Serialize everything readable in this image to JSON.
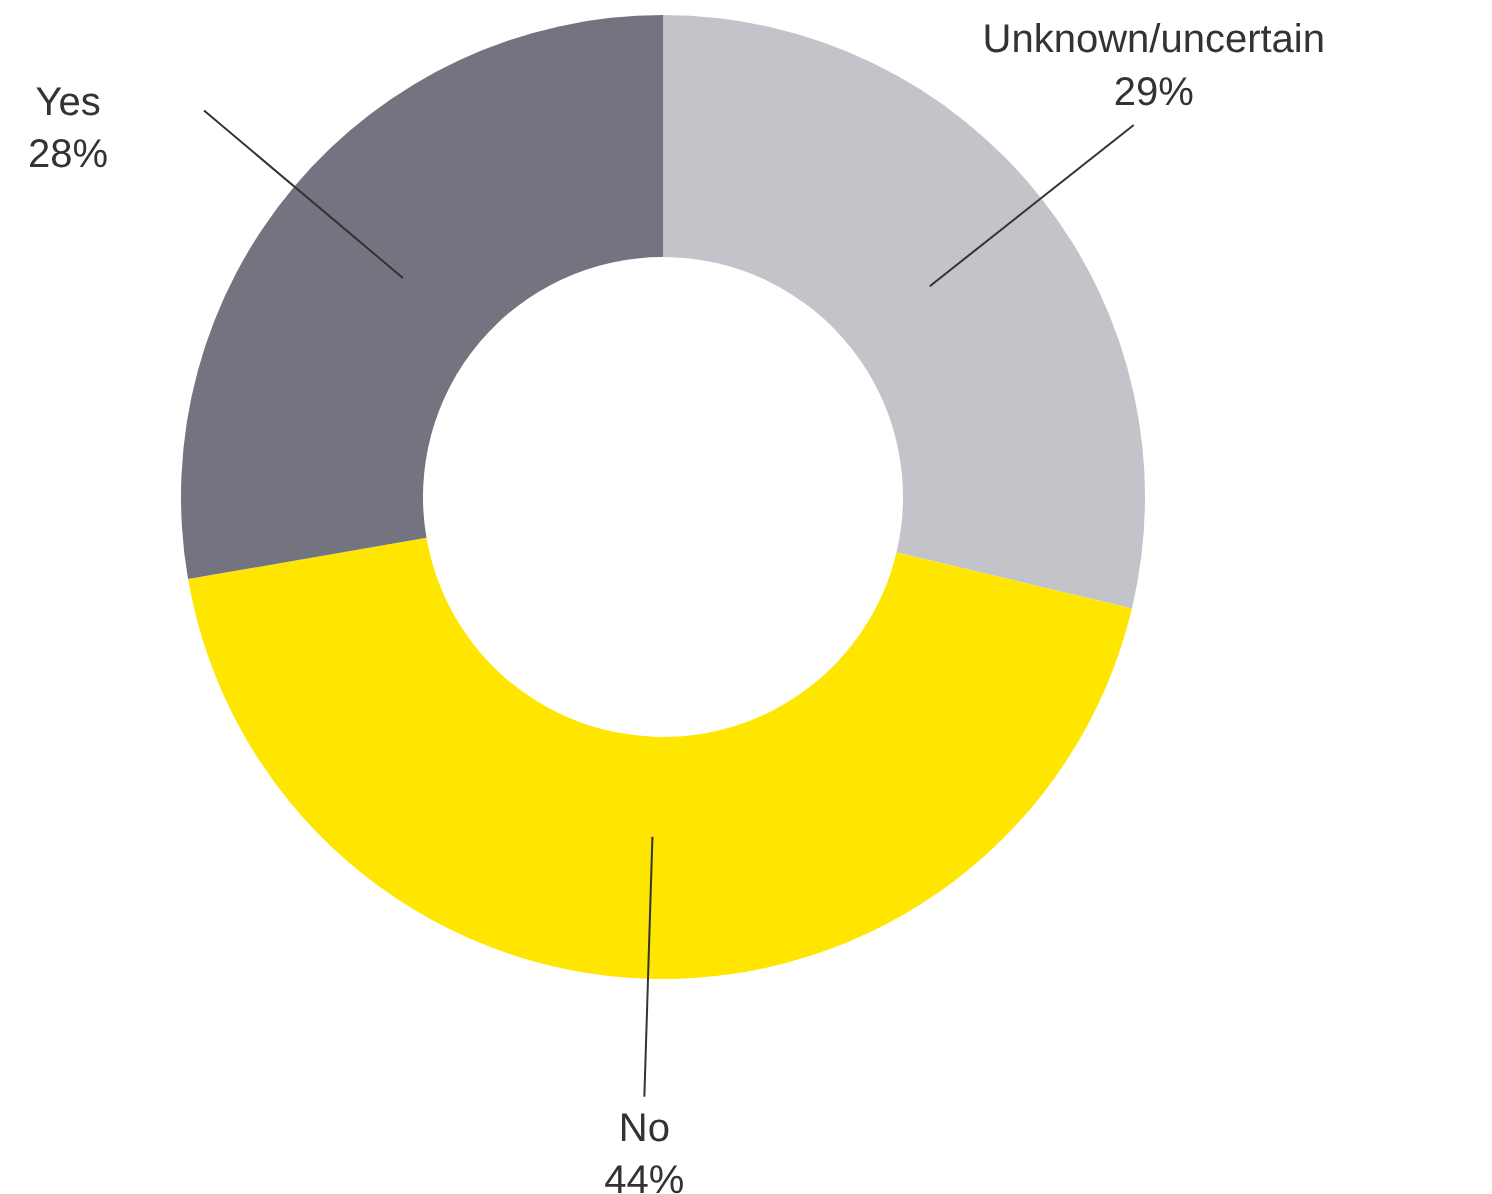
{
  "chart_data": {
    "type": "donut",
    "categories": [
      "Unknown/uncertain",
      "No",
      "Yes"
    ],
    "values": [
      29,
      44,
      28
    ],
    "value_labels": [
      "29%",
      "44%",
      "28%"
    ],
    "colors": [
      "#c3c3ca",
      "#ffe600",
      "#747480"
    ]
  }
}
